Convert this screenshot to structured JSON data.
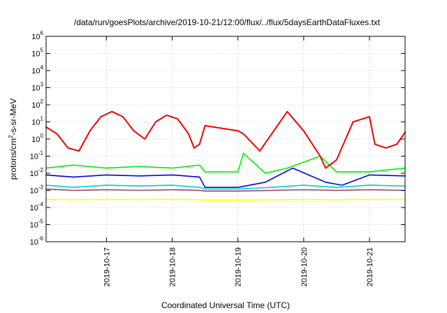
{
  "chart_data": {
    "type": "line",
    "title": "/data/run/goesPlots/archive/2019-10-21/12:00/flux/../flux/5daysEarthDataFluxes.txt",
    "xlabel": "Coordinated Universal Time (UTC)",
    "ylabel_parts": {
      "pre": "protons/cm",
      "sup": "2",
      "post": "-s-sr-MeV"
    },
    "yscale": "log",
    "ylim": [
      1e-06,
      1000000.0
    ],
    "xlim": [
      "2019-10-16T02:00",
      "2019-10-21T13:00"
    ],
    "grid": true,
    "y_ticks": [
      {
        "value": 1e-06,
        "base": "10",
        "exp": "-6"
      },
      {
        "value": 1e-05,
        "base": "10",
        "exp": "-5"
      },
      {
        "value": 0.0001,
        "base": "10",
        "exp": "-4"
      },
      {
        "value": 0.001,
        "base": "10",
        "exp": "-3"
      },
      {
        "value": 0.01,
        "base": "10",
        "exp": "-2"
      },
      {
        "value": 0.1,
        "base": "10",
        "exp": "-1"
      },
      {
        "value": 1,
        "base": "10",
        "exp": "0"
      },
      {
        "value": 10,
        "base": "10",
        "exp": "1"
      },
      {
        "value": 100,
        "base": "10",
        "exp": "2"
      },
      {
        "value": 1000,
        "base": "10",
        "exp": "3"
      },
      {
        "value": 10000,
        "base": "10",
        "exp": "4"
      },
      {
        "value": 100000,
        "base": "10",
        "exp": "5"
      },
      {
        "value": 1000000,
        "base": "10",
        "exp": "6"
      }
    ],
    "x_ticks": [
      "2019-10-17",
      "2019-10-18",
      "2019-10-19",
      "2019-10-20",
      "2019-10-21"
    ],
    "series": [
      {
        "color": "#ffff00",
        "x": [
          "2019-10-16T02:00",
          "2019-10-16T12:00",
          "2019-10-17T00:00",
          "2019-10-17T12:00",
          "2019-10-18T00:00",
          "2019-10-18T10:00",
          "2019-10-18T12:00",
          "2019-10-19T00:00",
          "2019-10-19T12:00",
          "2019-10-20T00:00",
          "2019-10-20T12:00",
          "2019-10-21T00:00",
          "2019-10-21T13:00"
        ],
        "y": [
          0.0003,
          0.00028,
          0.0003,
          0.00029,
          0.0003,
          0.00028,
          0.00027,
          0.00027,
          0.00028,
          0.00029,
          0.00028,
          0.0003,
          0.00029
        ]
      },
      {
        "color": "#00cccc",
        "x": [
          "2019-10-16T02:00",
          "2019-10-16T12:00",
          "2019-10-17T00:00",
          "2019-10-17T12:00",
          "2019-10-18T00:00",
          "2019-10-18T10:00",
          "2019-10-18T12:00",
          "2019-10-19T00:00",
          "2019-10-19T12:00",
          "2019-10-20T00:00",
          "2019-10-20T12:00",
          "2019-10-21T00:00",
          "2019-10-21T13:00"
        ],
        "y": [
          0.002,
          0.0015,
          0.002,
          0.0018,
          0.002,
          0.0015,
          0.0012,
          0.0012,
          0.0015,
          0.002,
          0.0015,
          0.002,
          0.0018
        ]
      },
      {
        "color": "#a04070",
        "x": [
          "2019-10-16T02:00",
          "2019-10-16T12:00",
          "2019-10-17T00:00",
          "2019-10-17T12:00",
          "2019-10-18T00:00",
          "2019-10-18T10:00",
          "2019-10-18T12:00",
          "2019-10-19T00:00",
          "2019-10-19T12:00",
          "2019-10-20T00:00",
          "2019-10-20T12:00",
          "2019-10-21T00:00",
          "2019-10-21T13:00"
        ],
        "y": [
          0.0012,
          0.001,
          0.0011,
          0.001,
          0.0011,
          0.001,
          0.0009,
          0.0009,
          0.001,
          0.0011,
          0.001,
          0.0011,
          0.001
        ]
      },
      {
        "color": "#00ee00",
        "x": [
          "2019-10-16T02:00",
          "2019-10-16T12:00",
          "2019-10-17T00:00",
          "2019-10-17T12:00",
          "2019-10-18T00:00",
          "2019-10-18T10:00",
          "2019-10-18T12:00",
          "2019-10-19T00:00",
          "2019-10-19T02:00",
          "2019-10-19T10:00",
          "2019-10-19T18:00",
          "2019-10-20T06:00",
          "2019-10-20T12:00",
          "2019-10-21T00:00",
          "2019-10-21T13:00"
        ],
        "y": [
          0.02,
          0.03,
          0.02,
          0.025,
          0.02,
          0.03,
          0.012,
          0.012,
          0.15,
          0.01,
          0.02,
          0.1,
          0.012,
          0.012,
          0.02
        ]
      },
      {
        "color": "#0000ee",
        "x": [
          "2019-10-16T02:00",
          "2019-10-16T12:00",
          "2019-10-17T00:00",
          "2019-10-17T12:00",
          "2019-10-18T00:00",
          "2019-10-18T10:00",
          "2019-10-18T12:00",
          "2019-10-19T00:00",
          "2019-10-19T10:00",
          "2019-10-19T20:00",
          "2019-10-20T08:00",
          "2019-10-20T14:00",
          "2019-10-21T00:00",
          "2019-10-21T13:00"
        ],
        "y": [
          0.008,
          0.006,
          0.008,
          0.007,
          0.008,
          0.006,
          0.0015,
          0.0015,
          0.003,
          0.02,
          0.003,
          0.002,
          0.008,
          0.007
        ]
      },
      {
        "color": "#ee0000",
        "x": [
          "2019-10-16T02:00",
          "2019-10-16T06:00",
          "2019-10-16T10:00",
          "2019-10-16T14:00",
          "2019-10-16T18:00",
          "2019-10-16T22:00",
          "2019-10-17T02:00",
          "2019-10-17T06:00",
          "2019-10-17T10:00",
          "2019-10-17T14:00",
          "2019-10-17T18:00",
          "2019-10-17T22:00",
          "2019-10-18T02:00",
          "2019-10-18T06:00",
          "2019-10-18T08:00",
          "2019-10-18T10:00",
          "2019-10-18T12:00",
          "2019-10-19T00:00",
          "2019-10-19T02:00",
          "2019-10-19T08:00",
          "2019-10-19T18:00",
          "2019-10-20T00:00",
          "2019-10-20T06:00",
          "2019-10-20T08:00",
          "2019-10-20T12:00",
          "2019-10-20T18:00",
          "2019-10-21T00:00",
          "2019-10-21T02:00",
          "2019-10-21T06:00",
          "2019-10-21T10:00",
          "2019-10-21T13:00"
        ],
        "y": [
          5,
          2,
          0.3,
          0.2,
          3,
          20,
          40,
          20,
          3,
          1,
          10,
          25,
          15,
          2,
          0.3,
          0.5,
          6,
          3,
          2,
          0.2,
          40,
          3,
          0.1,
          0.02,
          0.06,
          10,
          20,
          0.5,
          0.3,
          0.5,
          2.5
        ]
      }
    ]
  }
}
